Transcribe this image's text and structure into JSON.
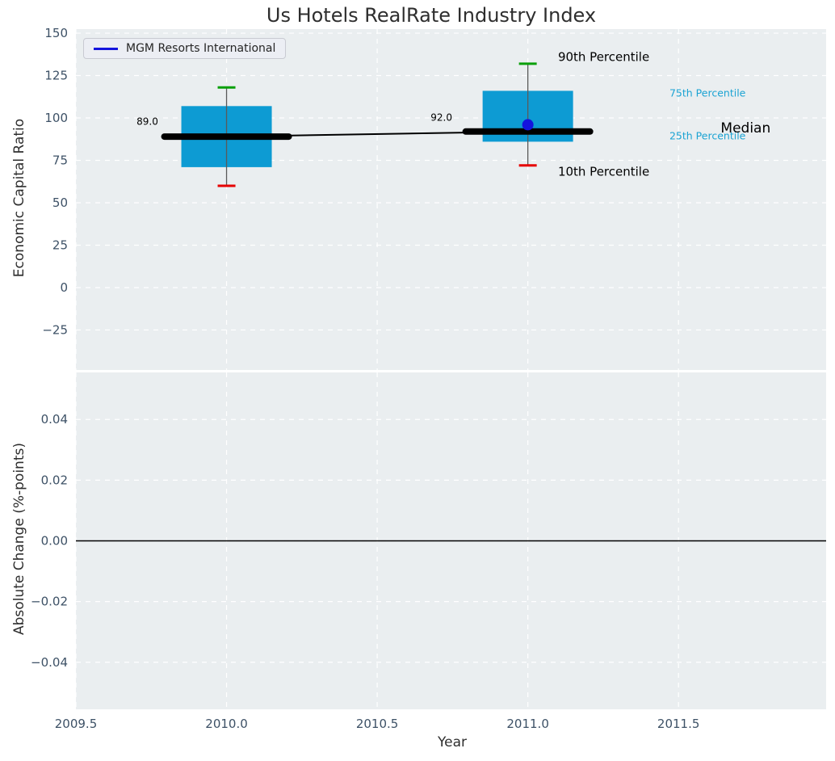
{
  "chart_data": {
    "type": "box",
    "title": "Us Hotels RealRate Industry Index",
    "xlabel": "Year",
    "series_name": "MGM Resorts International",
    "xlim": [
      2009.5,
      2011.99
    ],
    "xticks": [
      {
        "v": 2009.5,
        "label": "2009.5"
      },
      {
        "v": 2010.0,
        "label": "2010.0"
      },
      {
        "v": 2010.5,
        "label": "2010.5"
      },
      {
        "v": 2011.0,
        "label": "2011.0"
      },
      {
        "v": 2011.5,
        "label": "2011.5"
      }
    ],
    "grid": "white-dashed",
    "legend_position": "upper-left",
    "panels": [
      {
        "name": "economic-capital-ratio",
        "ylabel": "Economic Capital Ratio",
        "ylim": [
          -48.6,
          152.4
        ],
        "yticks": [
          {
            "v": 150,
            "label": "150"
          },
          {
            "v": 125,
            "label": "125"
          },
          {
            "v": 100,
            "label": "100"
          },
          {
            "v": 75,
            "label": "75"
          },
          {
            "v": 50,
            "label": "50"
          },
          {
            "v": 25,
            "label": "25"
          },
          {
            "v": 0,
            "label": "0"
          },
          {
            "v": -25,
            "label": "−25"
          }
        ],
        "boxes": [
          {
            "year": 2010,
            "p10": 60,
            "p25": 71,
            "median": 89,
            "p75": 107,
            "p90": 118,
            "median_label": "89.0"
          },
          {
            "year": 2011,
            "p10": 72,
            "p25": 86,
            "median": 92,
            "p75": 116,
            "p90": 132,
            "median_label": "92.0"
          }
        ],
        "company_points": [
          {
            "year": 2011,
            "value": 96
          }
        ],
        "annotations": [
          {
            "id": "p90-label",
            "text": "90th Percentile",
            "x": 2011.1,
            "y": 135.8,
            "size": 15,
            "color": "#000000",
            "anchor": "start"
          },
          {
            "id": "p10-label",
            "text": "10th Percentile",
            "x": 2011.1,
            "y": 68.2,
            "size": 15,
            "color": "#000000",
            "anchor": "start"
          },
          {
            "id": "p75-label",
            "text": "75th Percentile",
            "x": 2011.47,
            "y": 114.3,
            "size": 12.5,
            "color": "#1ba3d3",
            "anchor": "start"
          },
          {
            "id": "p25-label",
            "text": "25th Percentile",
            "x": 2011.47,
            "y": 89.0,
            "size": 12.5,
            "color": "#1ba3d3",
            "anchor": "start"
          },
          {
            "id": "median-label",
            "text": "Median",
            "x": 2011.64,
            "y": 93.8,
            "size": 17,
            "color": "#000000",
            "anchor": "start"
          },
          {
            "id": "median-2010-value",
            "text": "89.0",
            "x": 2009.773,
            "y": 97.6,
            "size": 12,
            "color": "#000000",
            "anchor": "end"
          },
          {
            "id": "median-2011-value",
            "text": "92.0",
            "x": 2010.749,
            "y": 100.1,
            "size": 12,
            "color": "#000000",
            "anchor": "end"
          }
        ]
      },
      {
        "name": "absolute-change",
        "ylabel": "Absolute Change (%-points)",
        "ylim": [
          -0.0555,
          0.0555
        ],
        "yticks": [
          {
            "v": 0.04,
            "label": "0.04"
          },
          {
            "v": 0.02,
            "label": "0.02"
          },
          {
            "v": 0.0,
            "label": "0.00"
          },
          {
            "v": -0.02,
            "label": "−0.02"
          },
          {
            "v": -0.04,
            "label": "−0.04"
          }
        ],
        "zero_line": true
      }
    ],
    "colors": {
      "panel_bg": "#eaeef0",
      "grid": "#ffffff",
      "box_fill": "#0d9bd3",
      "whisker": "#5a5a5a",
      "cap_top": "#0aa00a",
      "cap_bottom": "#e60000",
      "median_line": "#000000",
      "company": "#1414dd",
      "tick_text": "#3d5166",
      "percentile_text": "#1ba3d3"
    }
  }
}
